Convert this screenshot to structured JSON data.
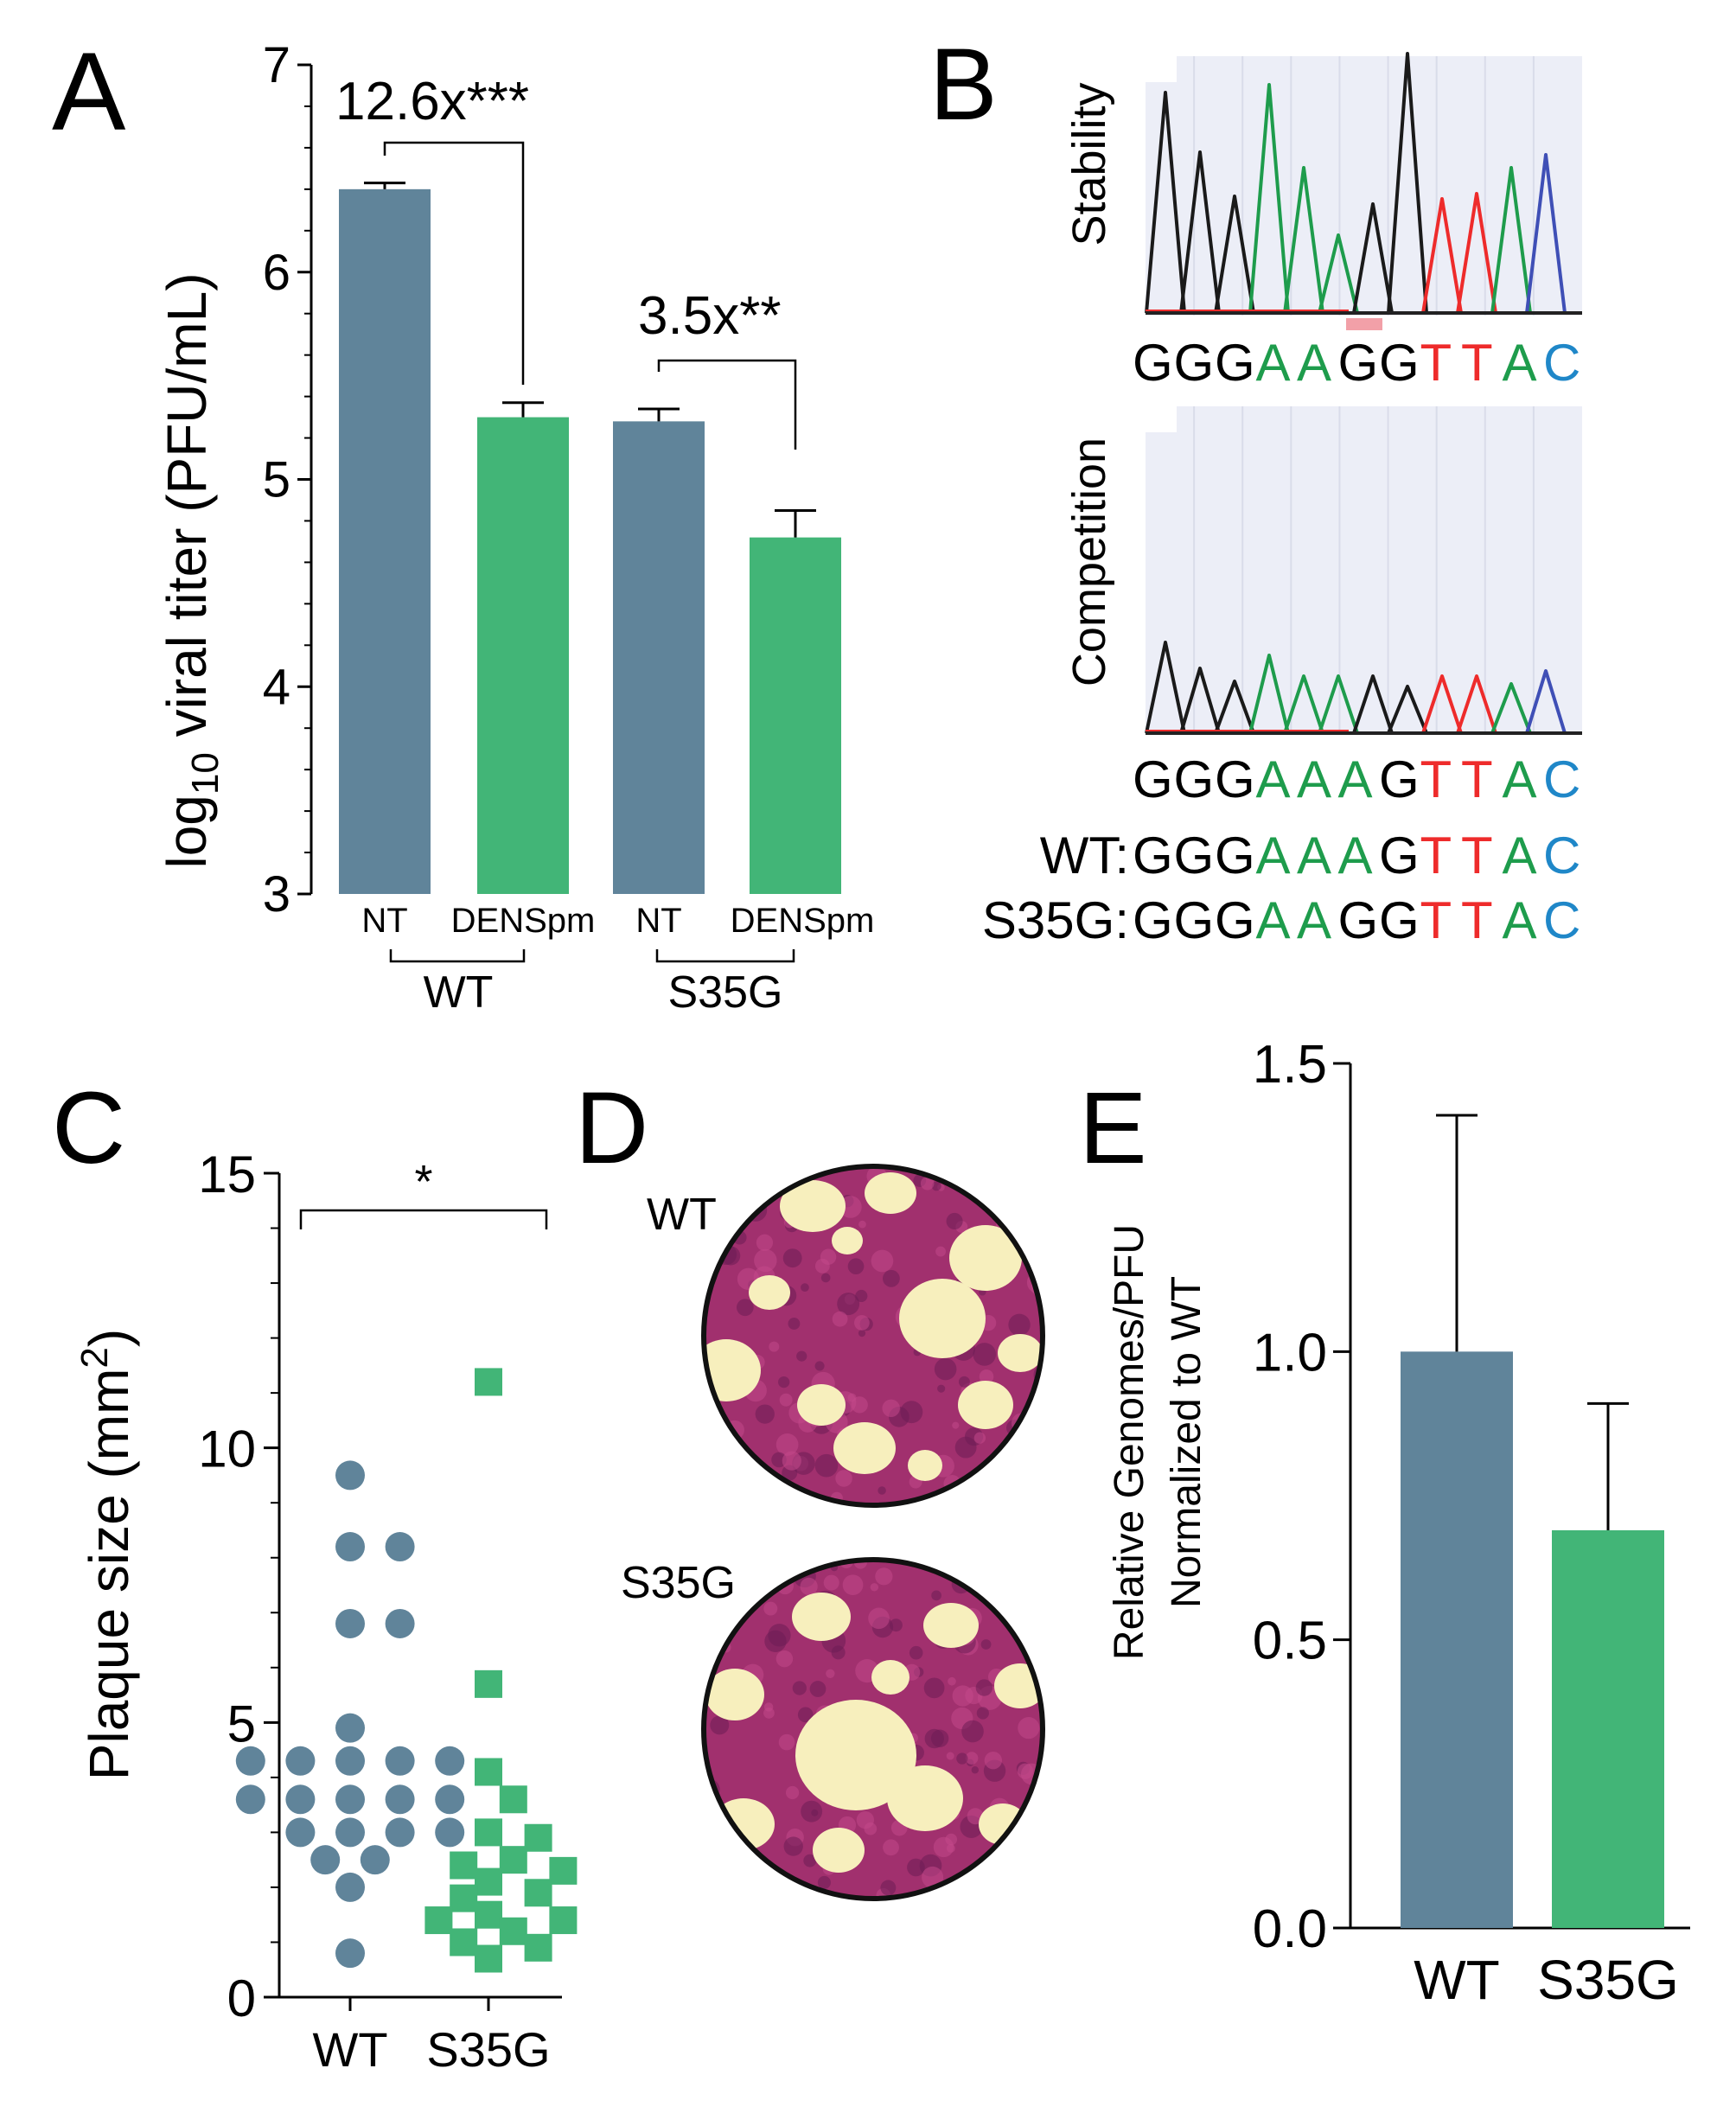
{
  "colors": {
    "wt": "#60849a",
    "dens": "#42b577",
    "trace_g": "#1a1a1a",
    "trace_a": "#1e9c4c",
    "trace_t": "#ee2b2b",
    "trace_c": "#3f4fb6",
    "base_c_text": "#1f87c8",
    "plaque_bg": "#a1306e",
    "plaque_clear": "#f7efbd"
  },
  "panels": {
    "A": {
      "letter": "A",
      "chart_data": {
        "type": "bar",
        "ylabel_pre": "log",
        "ylabel_sub": "10",
        "ylabel_post": " viral titer (PFU/mL)",
        "ylim": [
          3,
          7
        ],
        "yticks": [
          "3",
          "4",
          "5",
          "6",
          "7"
        ],
        "categories": [
          "NT",
          "DENSpm",
          "NT",
          "DENSpm"
        ],
        "groups": [
          "WT",
          "S35G"
        ],
        "values": [
          6.4,
          5.3,
          5.28,
          4.72
        ],
        "errors": [
          0.03,
          0.07,
          0.06,
          0.13
        ],
        "series_colors": [
          "wt",
          "dens",
          "wt",
          "dens"
        ],
        "annotations": [
          "12.6x***",
          "3.5x**"
        ]
      }
    },
    "B": {
      "letter": "B",
      "stability_label": "Stability",
      "competition_label": "Competition",
      "stability_seq": [
        "G",
        "G",
        "G",
        "A",
        "A",
        "G",
        "G",
        "T",
        "T",
        "A",
        "C"
      ],
      "competition_seq": [
        "G",
        "G",
        "G",
        "A",
        "A",
        "A",
        "G",
        "T",
        "T",
        "A",
        "C"
      ],
      "wt_label": "WT:",
      "wt_seq": [
        "G",
        "G",
        "G",
        "A",
        "A",
        "A",
        "G",
        "T",
        "T",
        "A",
        "C"
      ],
      "s35g_label": "S35G:",
      "s35g_seq": [
        "G",
        "G",
        "G",
        "A",
        "A",
        "G",
        "G",
        "T",
        "T",
        "A",
        "C"
      ],
      "stability_peaks": [
        0.85,
        0.62,
        0.45,
        0.88,
        0.56,
        0.3,
        0.42,
        1.0,
        0.44,
        0.46,
        0.56,
        0.61
      ],
      "competition_peaks": [
        0.35,
        0.25,
        0.2,
        0.3,
        0.22,
        0.22,
        0.22,
        0.18,
        0.22,
        0.22,
        0.19,
        0.24
      ]
    },
    "C": {
      "letter": "C",
      "chart_data": {
        "type": "scatter",
        "ylabel": "Plaque size (mm",
        "ylabel_sup": "2",
        "ylabel_close": ")",
        "ylim": [
          0,
          15
        ],
        "yticks": [
          "0",
          "5",
          "10",
          "15"
        ],
        "categories": [
          "WT",
          "S35G"
        ],
        "significance": "*",
        "series": [
          {
            "name": "WT",
            "values": [
              9.5,
              8.2,
              8.2,
              6.8,
              6.8,
              4.9,
              4.3,
              4.3,
              4.3,
              4.3,
              4.3,
              3.6,
              3.6,
              3.6,
              3.6,
              3.6,
              3.0,
              3.0,
              3.0,
              3.0,
              2.5,
              2.5,
              2.0,
              0.8
            ]
          },
          {
            "name": "S35G",
            "values": [
              11.2,
              5.7,
              4.1,
              3.6,
              3.0,
              2.9,
              2.5,
              2.4,
              2.3,
              2.1,
              1.9,
              1.8,
              1.5,
              1.4,
              1.4,
              1.2,
              1.0,
              0.9,
              0.7
            ]
          }
        ]
      }
    },
    "D": {
      "letter": "D",
      "labels": [
        "WT",
        "S35G"
      ]
    },
    "E": {
      "letter": "E",
      "chart_data": {
        "type": "bar",
        "ylabel_line1": "Relative Genomes/PFU",
        "ylabel_line2": "Normalized to WT",
        "ylim": [
          0,
          1.5
        ],
        "yticks": [
          "0.0",
          "0.5",
          "1.0",
          "1.5"
        ],
        "categories": [
          "WT",
          "S35G"
        ],
        "values": [
          1.0,
          0.69
        ],
        "errors": [
          0.41,
          0.22
        ],
        "series_colors": [
          "wt",
          "dens"
        ]
      }
    }
  }
}
